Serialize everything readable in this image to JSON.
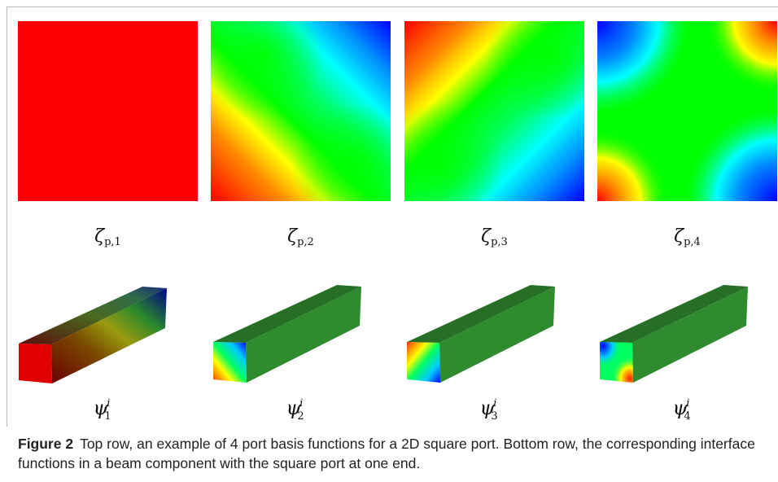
{
  "top_row": [
    {
      "symbol": "ζ",
      "subscript": "p,1"
    },
    {
      "symbol": "ζ",
      "subscript": "p,2"
    },
    {
      "symbol": "ζ",
      "subscript": "p,3"
    },
    {
      "symbol": "ζ",
      "subscript": "p,4"
    }
  ],
  "bottom_row": [
    {
      "symbol": "ψ",
      "superscript": "i",
      "subscript": "1"
    },
    {
      "symbol": "ψ",
      "superscript": "i",
      "subscript": "2"
    },
    {
      "symbol": "ψ",
      "superscript": "i",
      "subscript": "3"
    },
    {
      "symbol": "ψ",
      "superscript": "i",
      "subscript": "4"
    }
  ],
  "caption": {
    "figure_label": "Figure 2",
    "text": "Top row, an example of 4 port basis functions for a 2D square port. Bottom row, the corresponding interface functions in a beam component with the square port at one end."
  },
  "colors": {
    "red": "#ff0000",
    "yellow": "#ffff00",
    "green": "#00ff00",
    "cyan": "#00ffff",
    "blue": "#0000ff",
    "beam_green": "#2e8b2e"
  }
}
